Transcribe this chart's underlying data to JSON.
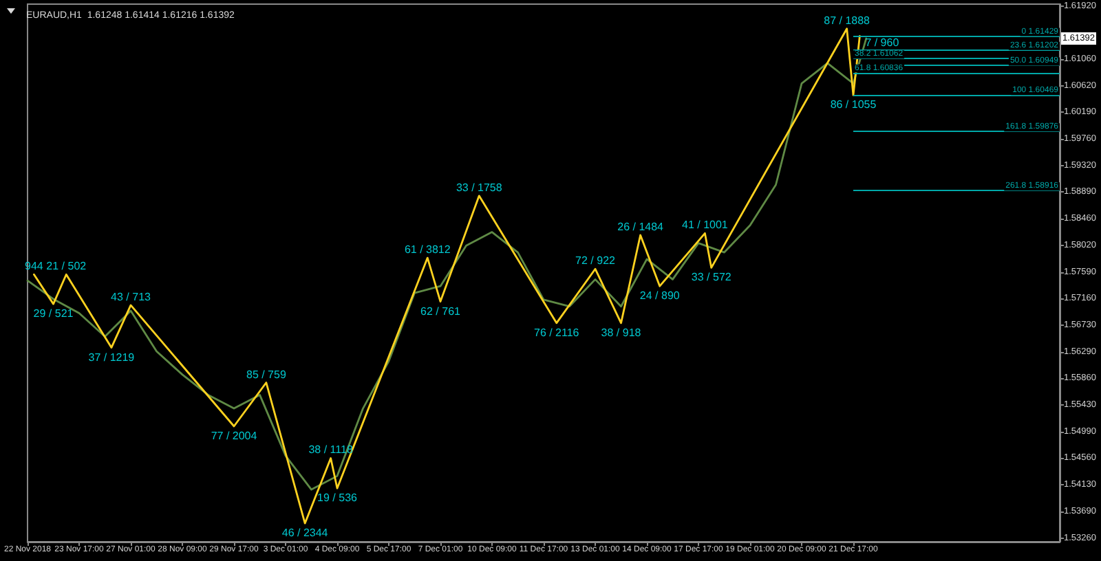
{
  "chart_data": {
    "type": "line",
    "title": "EURAUD,H1  1.61248 1.61414 1.61216 1.61392",
    "categories": [
      "22 Nov 2018",
      null,
      null,
      null,
      null,
      null,
      null,
      null,
      "23 Nov 17:00",
      null,
      null,
      null,
      null,
      null,
      null,
      null,
      "27 Nov 01:00",
      null,
      null,
      null,
      null,
      null,
      null,
      null,
      "28 Nov 09:00",
      null,
      null,
      null,
      null,
      null,
      null,
      null,
      "29 Nov 17:00",
      null,
      null,
      null,
      null,
      null,
      null,
      null,
      "3 Dec 01:00",
      null,
      null,
      null,
      null,
      null,
      null,
      null,
      "4 Dec 09:00",
      null,
      null,
      null,
      null,
      null,
      null,
      null,
      "5 Dec 17:00",
      null,
      null,
      null,
      null,
      null,
      null,
      null,
      "7 Dec 01:00",
      null,
      null,
      null,
      null,
      null,
      null,
      null,
      "10 Dec 09:00",
      null,
      null,
      null,
      null,
      null,
      null,
      null,
      "11 Dec 17:00",
      null,
      null,
      null,
      null,
      null,
      null,
      null,
      "13 Dec 01:00",
      null,
      null,
      null,
      null,
      null,
      null,
      null,
      "14 Dec 09:00",
      null,
      null,
      null,
      null,
      null,
      null,
      null,
      "17 Dec 17:00",
      null,
      null,
      null,
      null,
      null,
      null,
      null,
      "19 Dec 01:00",
      null,
      null,
      null,
      null,
      null,
      null,
      null,
      "20 Dec 09:00",
      null,
      null,
      null,
      null,
      null,
      null,
      null,
      "21 Dec 17:00",
      null,
      null,
      null,
      null,
      null,
      null,
      null,
      null,
      null,
      null,
      null,
      null,
      null,
      null,
      null,
      null,
      null,
      null,
      null,
      null,
      null,
      null,
      null,
      null,
      null,
      null,
      null,
      null,
      null,
      null,
      null,
      null
    ],
    "ylim": [
      1.532,
      1.6195
    ],
    "yticks": [
      {
        "value": 1.5326,
        "label": "1.53260"
      },
      {
        "value": 1.5369,
        "label": "1.53690"
      },
      {
        "value": 1.5413,
        "label": "1.54130"
      },
      {
        "value": 1.5456,
        "label": "1.54560"
      },
      {
        "value": 1.5499,
        "label": "1.54990"
      },
      {
        "value": 1.5543,
        "label": "1.55430"
      },
      {
        "value": 1.5586,
        "label": "1.55860"
      },
      {
        "value": 1.5629,
        "label": "1.56290"
      },
      {
        "value": 1.5673,
        "label": "1.56730"
      },
      {
        "value": 1.5716,
        "label": "1.57160"
      },
      {
        "value": 1.5759,
        "label": "1.57590"
      },
      {
        "value": 1.5802,
        "label": "1.58020"
      },
      {
        "value": 1.5846,
        "label": "1.58460"
      },
      {
        "value": 1.5889,
        "label": "1.58890"
      },
      {
        "value": 1.5932,
        "label": "1.59320"
      },
      {
        "value": 1.5976,
        "label": "1.59760"
      },
      {
        "value": 1.6019,
        "label": "1.60190"
      },
      {
        "value": 1.6062,
        "label": "1.60620"
      },
      {
        "value": 1.6106,
        "label": "1.61060"
      },
      {
        "value": 1.6192,
        "label": "1.61920"
      }
    ],
    "series": [
      {
        "color": "#5f8a45",
        "values": [
          1.5745,
          null,
          null,
          null,
          1.5715,
          null,
          null,
          null,
          1.5692,
          null,
          null,
          null,
          1.5654,
          null,
          null,
          null,
          1.5696,
          null,
          null,
          null,
          1.563,
          null,
          null,
          null,
          1.5592,
          null,
          null,
          null,
          1.5559,
          null,
          null,
          null,
          1.5537,
          null,
          null,
          null,
          1.5559,
          null,
          null,
          null,
          1.546,
          null,
          null,
          null,
          1.5405,
          null,
          null,
          null,
          1.5427,
          null,
          null,
          null,
          1.5537,
          null,
          null,
          null,
          1.5614,
          null,
          null,
          null,
          1.5725,
          null,
          null,
          null,
          1.5736,
          null,
          null,
          null,
          1.5802,
          null,
          null,
          null,
          1.5824,
          null,
          null,
          null,
          1.5791,
          null,
          null,
          null,
          1.5714,
          null,
          null,
          null,
          1.5703,
          null,
          null,
          null,
          1.5747,
          null,
          null,
          null,
          1.5703,
          null,
          null,
          null,
          1.578,
          null,
          null,
          null,
          1.5747,
          null,
          null,
          null,
          1.5806,
          null,
          null,
          null,
          1.5791,
          null,
          null,
          null,
          1.5835,
          null,
          null,
          null,
          1.5901,
          null,
          null,
          null,
          1.6066,
          null,
          null,
          null,
          1.6099,
          null,
          null,
          null,
          1.6066,
          null,
          1.6139,
          null,
          null,
          null,
          null,
          null,
          null,
          null,
          null,
          null,
          null,
          null,
          null,
          null,
          null,
          null,
          null,
          null,
          null,
          null,
          null,
          null,
          null,
          null,
          null,
          null,
          null,
          null,
          null,
          null,
          null
        ]
      },
      {
        "color": "#ffd21f",
        "values": [
          null,
          1.5755,
          null,
          null,
          1.5707,
          null,
          1.5755,
          null,
          null,
          null,
          null,
          null,
          null,
          1.5636,
          null,
          null,
          1.5705,
          null,
          null,
          null,
          null,
          null,
          null,
          null,
          null,
          null,
          null,
          null,
          null,
          null,
          null,
          null,
          1.5508,
          null,
          null,
          null,
          null,
          1.5579,
          null,
          null,
          null,
          null,
          null,
          1.535,
          null,
          null,
          null,
          1.5456,
          1.5407,
          null,
          null,
          null,
          null,
          null,
          null,
          null,
          null,
          null,
          null,
          null,
          null,
          null,
          1.5782,
          null,
          1.5711,
          null,
          null,
          null,
          null,
          null,
          1.5883,
          null,
          null,
          null,
          null,
          null,
          null,
          null,
          null,
          null,
          null,
          null,
          1.5676,
          null,
          null,
          null,
          null,
          null,
          1.5764,
          null,
          null,
          null,
          1.5676,
          null,
          null,
          1.5819,
          null,
          null,
          1.5736,
          null,
          null,
          null,
          null,
          null,
          null,
          1.5822,
          1.5766,
          null,
          null,
          null,
          null,
          null,
          null,
          null,
          null,
          null,
          null,
          null,
          null,
          null,
          null,
          null,
          null,
          null,
          null,
          null,
          null,
          1.6155,
          1.6047,
          1.6143,
          null,
          null,
          null,
          null,
          null,
          null,
          null,
          null,
          null,
          null,
          null,
          null,
          null,
          null,
          null,
          null,
          null,
          null,
          null,
          null,
          null,
          null,
          null,
          null,
          null,
          null,
          null,
          null,
          null,
          null,
          null
        ]
      }
    ],
    "ref_lines": [
      {
        "axis": "y",
        "value": 1.61429,
        "label": "0 1.61429",
        "color": "#00a8a8"
      },
      {
        "axis": "y",
        "value": 1.61202,
        "label": "23.6 1.61202",
        "color": "#00a8a8"
      },
      {
        "axis": "y",
        "value": 1.61062,
        "label": "38.2 1.61062",
        "color": "#00a8a8"
      },
      {
        "axis": "y",
        "value": 1.60949,
        "label": "50.0 1.60949",
        "color": "#00a8a8"
      },
      {
        "axis": "y",
        "value": 1.60836,
        "label": "61.8 1.60836",
        "color": "#00a8a8"
      },
      {
        "axis": "y",
        "value": 1.60469,
        "label": "100 1.60469",
        "color": "#00a8a8"
      },
      {
        "axis": "y",
        "value": 1.59876,
        "label": "161.8 1.59876",
        "color": "#00a8a8"
      },
      {
        "axis": "y",
        "value": 1.58916,
        "label": "261.8 1.58916",
        "color": "#00a8a8"
      }
    ],
    "annotations": [
      {
        "text": "944",
        "y": 1.5755
      },
      {
        "text": "29 / 521",
        "y": 1.5707
      },
      {
        "text": "21 / 502",
        "y": 1.5755
      },
      {
        "text": "37 / 1219",
        "y": 1.5636
      },
      {
        "text": "43 / 713",
        "y": 1.5705
      },
      {
        "text": "77 / 2004",
        "y": 1.5508
      },
      {
        "text": "85 / 759",
        "y": 1.5579
      },
      {
        "text": "46 / 2344",
        "y": 1.535
      },
      {
        "text": "38 / 1118",
        "y": 1.5456
      },
      {
        "text": "19 / 536",
        "y": 1.5407
      },
      {
        "text": "61 / 3812",
        "y": 1.5782
      },
      {
        "text": "62 / 761",
        "y": 1.5711
      },
      {
        "text": "33 / 1758",
        "y": 1.5883
      },
      {
        "text": "76 / 2116",
        "y": 1.5676
      },
      {
        "text": "72 / 922",
        "y": 1.5764
      },
      {
        "text": "38 / 918",
        "y": 1.5676
      },
      {
        "text": "26 / 1484",
        "y": 1.5819
      },
      {
        "text": "24 / 890",
        "y": 1.5736
      },
      {
        "text": "41 / 1001",
        "y": 1.5822
      },
      {
        "text": "33 / 572",
        "y": 1.5766
      },
      {
        "text": "87 / 1888",
        "y": 1.6155
      },
      {
        "text": "86 / 1055",
        "y": 1.6047
      },
      {
        "text": "7 / 960",
        "y": 1.6143
      },
      "1.61392"
    ],
    "grid": false,
    "marker": "none",
    "line_style": "solid"
  }
}
